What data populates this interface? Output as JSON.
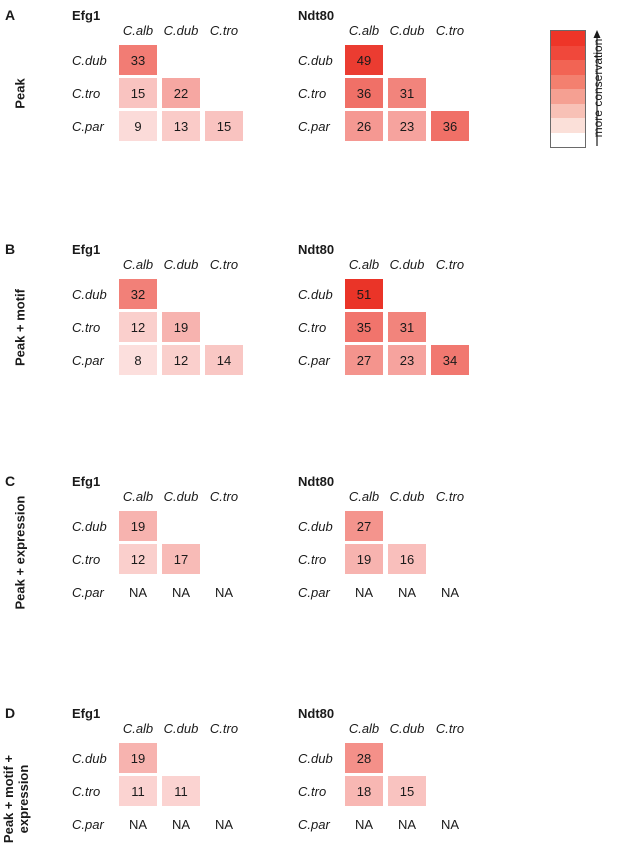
{
  "legend": {
    "label": "more conservation",
    "colors": [
      "#ee3528",
      "#f0483b",
      "#f26454",
      "#f3806f",
      "#f5a092",
      "#f8c1b6",
      "#fbe0d9",
      "#ffffff"
    ]
  },
  "chart_data": {
    "type": "heatmap",
    "columns": [
      "C.alb",
      "C.dub",
      "C.tro"
    ],
    "rows": [
      "C.dub",
      "C.tro",
      "C.par"
    ],
    "panels": [
      {
        "letter": "A",
        "row_title": [
          "Peak"
        ],
        "matrices": [
          {
            "title": "Efg1",
            "values": [
              [
                33,
                null,
                null
              ],
              [
                15,
                22,
                null
              ],
              [
                9,
                13,
                15
              ]
            ]
          },
          {
            "title": "Ndt80",
            "values": [
              [
                49,
                null,
                null
              ],
              [
                36,
                31,
                null
              ],
              [
                26,
                23,
                36
              ]
            ]
          }
        ]
      },
      {
        "letter": "B",
        "row_title": [
          "Peak + motif"
        ],
        "matrices": [
          {
            "title": "Efg1",
            "values": [
              [
                32,
                null,
                null
              ],
              [
                12,
                19,
                null
              ],
              [
                8,
                12,
                14
              ]
            ]
          },
          {
            "title": "Ndt80",
            "values": [
              [
                51,
                null,
                null
              ],
              [
                35,
                31,
                null
              ],
              [
                27,
                23,
                34
              ]
            ]
          }
        ]
      },
      {
        "letter": "C",
        "row_title": [
          "Peak + expression"
        ],
        "matrices": [
          {
            "title": "Efg1",
            "values": [
              [
                19,
                null,
                null
              ],
              [
                12,
                17,
                null
              ],
              [
                "NA",
                "NA",
                "NA"
              ]
            ]
          },
          {
            "title": "Ndt80",
            "values": [
              [
                27,
                null,
                null
              ],
              [
                19,
                16,
                null
              ],
              [
                "NA",
                "NA",
                "NA"
              ]
            ]
          }
        ]
      },
      {
        "letter": "D",
        "row_title": [
          "Peak + motif +",
          "expression"
        ],
        "matrices": [
          {
            "title": "Efg1",
            "values": [
              [
                19,
                null,
                null
              ],
              [
                11,
                11,
                null
              ],
              [
                "NA",
                "NA",
                "NA"
              ]
            ]
          },
          {
            "title": "Ndt80",
            "values": [
              [
                28,
                null,
                null
              ],
              [
                18,
                15,
                null
              ],
              [
                "NA",
                "NA",
                "NA"
              ]
            ]
          }
        ]
      }
    ]
  }
}
